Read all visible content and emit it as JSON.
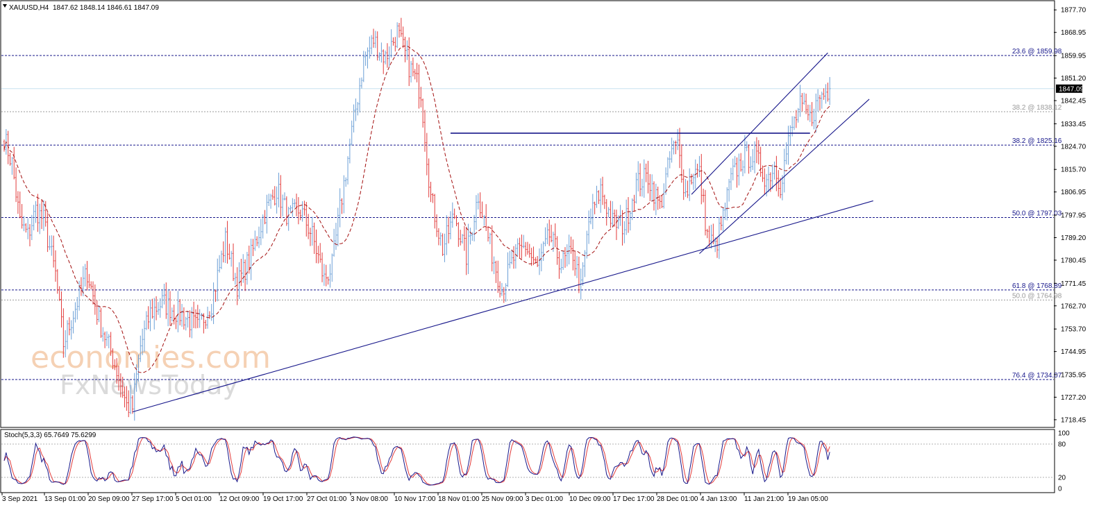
{
  "header": {
    "symbol": "XAUUSD,H4",
    "ohlc": "1847.62 1848.14 1846.61 1847.09"
  },
  "stoch": {
    "label": "Stoch(5,3,3) 65.7649 75.6299",
    "levels": [
      "100",
      "80",
      "20",
      "0"
    ]
  },
  "watermark": {
    "line1": "economies.com",
    "line2": "FxNewsToday"
  },
  "colors": {
    "up": "#6b9fd6",
    "down": "#e23a3a",
    "ma": "#a30f0f",
    "trend": "#16168a",
    "level": "#16168a",
    "faint_level": "#9a9a9a",
    "current": "#c8e2ef",
    "stoch_main": "#16168a",
    "stoch_signal": "#e23a3a"
  },
  "chart_data": {
    "type": "candlestick",
    "instrument": "XAUUSD",
    "timeframe": "H4",
    "ylim": [
      1716.0,
      1881.0
    ],
    "price_ticks": [
      "1877.70",
      "1868.95",
      "1859.95",
      "1851.20",
      "1842.45",
      "1833.45",
      "1824.70",
      "1815.70",
      "1806.95",
      "1797.95",
      "1789.20",
      "1780.45",
      "1771.45",
      "1762.70",
      "1753.70",
      "1744.95",
      "1735.95",
      "1727.20",
      "1718.45"
    ],
    "current_price": 1847.09,
    "current_price_label": "1847.09",
    "time_labels": [
      "3 Sep 2021",
      "13 Sep 01:00",
      "20 Sep 09:00",
      "27 Sep 17:00",
      "5 Oct 01:00",
      "12 Oct 09:00",
      "19 Oct 17:00",
      "27 Oct 01:00",
      "3 Nov 08:00",
      "10 Nov 17:00",
      "18 Nov 01:00",
      "25 Nov 09:00",
      "3 Dec 01:00",
      "10 Dec 09:00",
      "17 Dec 17:00",
      "28 Dec 01:00",
      "4 Jan 13:00",
      "11 Jan 21:00",
      "19 Jan 05:00"
    ],
    "fib_levels": [
      {
        "label": "23.6 @ 1859.98",
        "price": 1859.98,
        "style": "dashed"
      },
      {
        "label": "38.2 @ 1838.12",
        "price": 1838.12,
        "style": "faint"
      },
      {
        "label": "38.2 @ 1825.16",
        "price": 1825.16,
        "style": "dashed"
      },
      {
        "label": "50.0 @ 1797.03",
        "price": 1797.03,
        "style": "dashed"
      },
      {
        "label": "61.8 @ 1768.89",
        "price": 1768.89,
        "style": "dashed"
      },
      {
        "label": "50.0 @ 1764.98",
        "price": 1764.98,
        "style": "faint"
      },
      {
        "label": "76.4 @ 1734.07",
        "price": 1734.07,
        "style": "dashed"
      }
    ],
    "anchors": [
      [
        0,
        1828
      ],
      [
        4,
        1818
      ],
      [
        8,
        1795
      ],
      [
        12,
        1790
      ],
      [
        16,
        1800
      ],
      [
        20,
        1796
      ],
      [
        26,
        1775
      ],
      [
        30,
        1748
      ],
      [
        36,
        1762
      ],
      [
        42,
        1776
      ],
      [
        48,
        1757
      ],
      [
        54,
        1745
      ],
      [
        58,
        1735
      ],
      [
        62,
        1724
      ],
      [
        65,
        1723
      ],
      [
        69,
        1747
      ],
      [
        74,
        1760
      ],
      [
        80,
        1764
      ],
      [
        86,
        1761
      ],
      [
        92,
        1758
      ],
      [
        98,
        1754
      ],
      [
        105,
        1764
      ],
      [
        112,
        1788
      ],
      [
        118,
        1771
      ],
      [
        125,
        1782
      ],
      [
        132,
        1799
      ],
      [
        138,
        1808
      ],
      [
        144,
        1797
      ],
      [
        150,
        1800
      ],
      [
        156,
        1790
      ],
      [
        162,
        1773
      ],
      [
        166,
        1778
      ],
      [
        170,
        1800
      ],
      [
        176,
        1830
      ],
      [
        182,
        1858
      ],
      [
        187,
        1866
      ],
      [
        193,
        1859
      ],
      [
        199,
        1869
      ],
      [
        205,
        1856
      ],
      [
        211,
        1846
      ],
      [
        216,
        1805
      ],
      [
        222,
        1785
      ],
      [
        228,
        1798
      ],
      [
        234,
        1782
      ],
      [
        240,
        1806
      ],
      [
        246,
        1786
      ],
      [
        252,
        1769
      ],
      [
        258,
        1781
      ],
      [
        264,
        1786
      ],
      [
        270,
        1777
      ],
      [
        276,
        1790
      ],
      [
        282,
        1779
      ],
      [
        288,
        1783
      ],
      [
        292,
        1769
      ],
      [
        296,
        1795
      ],
      [
        302,
        1808
      ],
      [
        308,
        1795
      ],
      [
        314,
        1794
      ],
      [
        320,
        1810
      ],
      [
        326,
        1813
      ],
      [
        332,
        1801
      ],
      [
        338,
        1823
      ],
      [
        341,
        1825
      ],
      [
        345,
        1806
      ],
      [
        349,
        1815
      ],
      [
        352,
        1814
      ],
      [
        356,
        1790
      ],
      [
        360,
        1785
      ],
      [
        364,
        1797
      ],
      [
        368,
        1812
      ],
      [
        374,
        1820
      ],
      [
        380,
        1821
      ],
      [
        386,
        1812
      ],
      [
        390,
        1817
      ],
      [
        393,
        1810
      ],
      [
        398,
        1830
      ],
      [
        403,
        1840
      ],
      [
        408,
        1835
      ],
      [
        413,
        1844
      ],
      [
        418,
        1847
      ]
    ],
    "anchors_x_unit": "H4 bar index",
    "anchors_y_unit": "USD",
    "moving_average": "dashed",
    "trendlines": [
      {
        "from": [
          65,
          1721.5
        ],
        "to": [
          440,
          1803.5
        ]
      },
      {
        "from": [
          352,
          1783
        ],
        "to": [
          438,
          1843
        ]
      },
      {
        "from": [
          348,
          1806
        ],
        "to": [
          417,
          1861
        ]
      },
      {
        "from": [
          226,
          1829.8
        ],
        "to": [
          408,
          1829.8
        ]
      }
    ],
    "stoch_series": [
      "main",
      "signal"
    ],
    "stoch_current": [
      65.7649,
      75.6299
    ]
  }
}
